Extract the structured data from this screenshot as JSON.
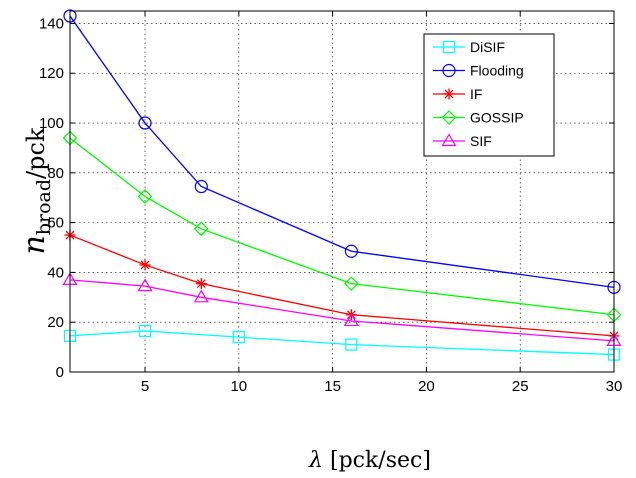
{
  "chart_data": {
    "type": "line",
    "title": "",
    "xlabel": "λ [pck/sec]",
    "ylabel": "n_broad/pck",
    "xlim": [
      1,
      30
    ],
    "ylim": [
      0,
      145
    ],
    "xticks": [
      5,
      10,
      15,
      20,
      25,
      30
    ],
    "yticks": [
      0,
      20,
      40,
      60,
      80,
      100,
      120,
      140
    ],
    "grid": "dotted",
    "legend_position": "top-right",
    "series": [
      {
        "name": "DiSIF",
        "color": "#00ffff",
        "marker": "square",
        "x": [
          1,
          5,
          10,
          16,
          30
        ],
        "y": [
          14.5,
          16.5,
          14,
          11,
          7
        ]
      },
      {
        "name": "Flooding",
        "color": "#0000ff",
        "marker": "circle",
        "x": [
          1,
          5,
          8,
          16,
          30
        ],
        "y": [
          143,
          100,
          74.5,
          48.5,
          34
        ]
      },
      {
        "name": "IF",
        "color": "#ff0000",
        "marker": "asterisk",
        "x": [
          1,
          5,
          8,
          16,
          30
        ],
        "y": [
          55,
          43,
          35.5,
          23,
          14.5
        ]
      },
      {
        "name": "GOSSIP",
        "color": "#00ff00",
        "marker": "diamond",
        "x": [
          1,
          5,
          8,
          16,
          30
        ],
        "y": [
          94,
          70.5,
          57.5,
          35.5,
          23
        ]
      },
      {
        "name": "SIF",
        "color": "#ff00ff",
        "marker": "triangle",
        "x": [
          1,
          5,
          8,
          16,
          30
        ],
        "y": [
          37,
          34.5,
          30,
          20.5,
          12.5
        ]
      }
    ]
  }
}
